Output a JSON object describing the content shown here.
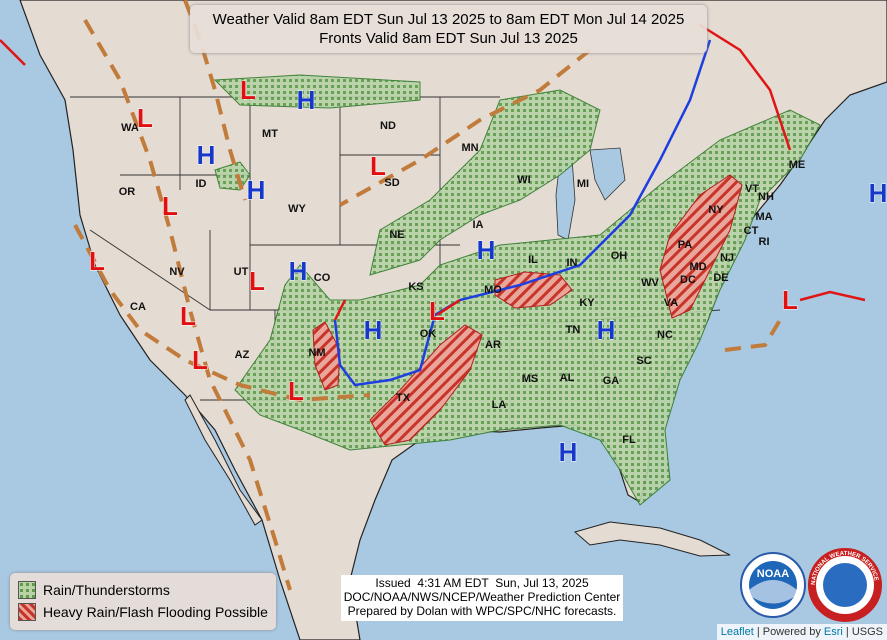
{
  "header": {
    "lines": [
      "Weather Valid 8am EDT Sun Jul 13 2025 to 8am EDT Mon Jul 14 2025",
      "Fronts Valid 8am EDT Sun Jul 13 2025"
    ]
  },
  "legend": {
    "items": [
      "Rain/Thunderstorms",
      "Heavy Rain/Flash Flooding Possible"
    ]
  },
  "issued": {
    "lines": [
      "Issued  4:31 AM EDT  Sun, Jul 13, 2025",
      "DOC/NOAA/NWS/NCEP/Weather Prediction Center",
      "Prepared by Dolan with WPC/SPC/NHC forecasts."
    ]
  },
  "attribution": [
    "Leaflet",
    "| Powered by",
    "Esri",
    "| USGS"
  ],
  "logos": {
    "noaa": "NOAA",
    "nws": "NATIONAL WEATHER SERVICE"
  },
  "states": [
    "WA",
    "MT",
    "ND",
    "MN",
    "WI",
    "MI",
    "OR",
    "ID",
    "SD",
    "WY",
    "IA",
    "NE",
    "IL",
    "IN",
    "OH",
    "NY",
    "PA",
    "NJ",
    "MD",
    "DC",
    "DE",
    "VA",
    "WV",
    "KY",
    "TN",
    "NC",
    "SC",
    "GA",
    "AL",
    "MS",
    "LA",
    "AR",
    "TX",
    "OK",
    "KS",
    "MO",
    "CO",
    "UT",
    "NV",
    "CA",
    "AZ",
    "NM",
    "FL",
    "ME",
    "VT",
    "NH",
    "MA",
    "CT",
    "RI"
  ],
  "pressure_centers": [
    "L",
    "L",
    "L",
    "L",
    "L",
    "L",
    "L",
    "L",
    "L",
    "L",
    "L",
    "H",
    "H",
    "H",
    "H",
    "H",
    "H",
    "H",
    "H",
    "H"
  ]
}
